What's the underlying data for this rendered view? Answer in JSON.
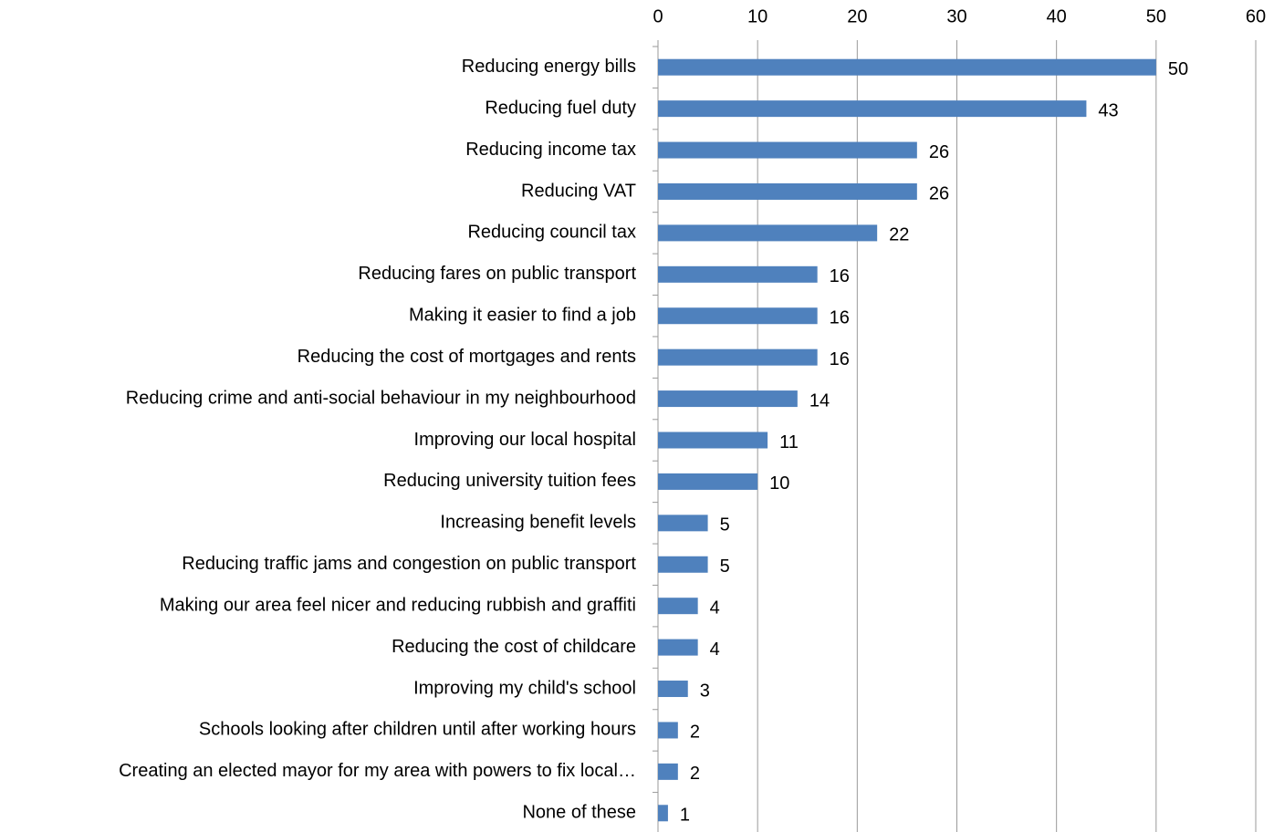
{
  "chart_data": {
    "type": "hbar",
    "categories": [
      "Reducing energy bills",
      "Reducing fuel duty",
      "Reducing income tax",
      "Reducing VAT",
      "Reducing council tax",
      "Reducing fares on public transport",
      "Making it easier to find a job",
      "Reducing the cost of mortgages and rents",
      "Reducing crime and anti-social behaviour in my neighbourhood",
      "Improving our local hospital",
      "Reducing university tuition fees",
      "Increasing benefit levels",
      "Reducing traffic jams and congestion on public transport",
      "Making our area feel nicer and reducing rubbish and graffiti",
      "Reducing the cost of childcare",
      "Improving my child's school",
      "Schools looking after children until after working hours",
      "Creating an elected mayor for my area with powers to fix local…",
      "None of these"
    ],
    "values": [
      50,
      43,
      26,
      26,
      22,
      16,
      16,
      16,
      14,
      11,
      10,
      5,
      5,
      4,
      4,
      3,
      2,
      2,
      1
    ],
    "color": "#4f81bd",
    "xlim": [
      0,
      60
    ],
    "xticks": [
      0,
      10,
      20,
      30,
      40,
      50,
      60
    ],
    "grid": true
  }
}
